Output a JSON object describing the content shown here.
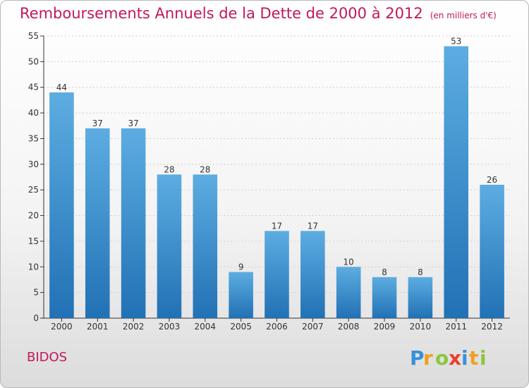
{
  "header": {
    "title": "Remboursements Annuels de la Dette de 2000 à 2012",
    "unit": "(en milliers d'€)"
  },
  "footer": {
    "commune": "BIDOS",
    "brand": "Proxiti"
  },
  "colors": {
    "accent": "#c2185b",
    "bar_top": "#5dade2",
    "bar_bottom": "#2171b5",
    "axis": "#333333",
    "grid": "#cfcfcf"
  },
  "chart_data": {
    "type": "bar",
    "categories": [
      "2000",
      "2001",
      "2002",
      "2003",
      "2004",
      "2005",
      "2006",
      "2007",
      "2008",
      "2009",
      "2010",
      "2011",
      "2012"
    ],
    "values": [
      44,
      37,
      37,
      28,
      28,
      9,
      17,
      17,
      10,
      8,
      8,
      53,
      26
    ],
    "title": "Remboursements Annuels de la Dette de 2000 à 2012",
    "xlabel": "",
    "ylabel": "",
    "ylim": [
      0,
      55
    ],
    "yticks": [
      0,
      5,
      10,
      15,
      20,
      25,
      30,
      35,
      40,
      45,
      50,
      55
    ],
    "grid": true,
    "data_labels": true
  }
}
